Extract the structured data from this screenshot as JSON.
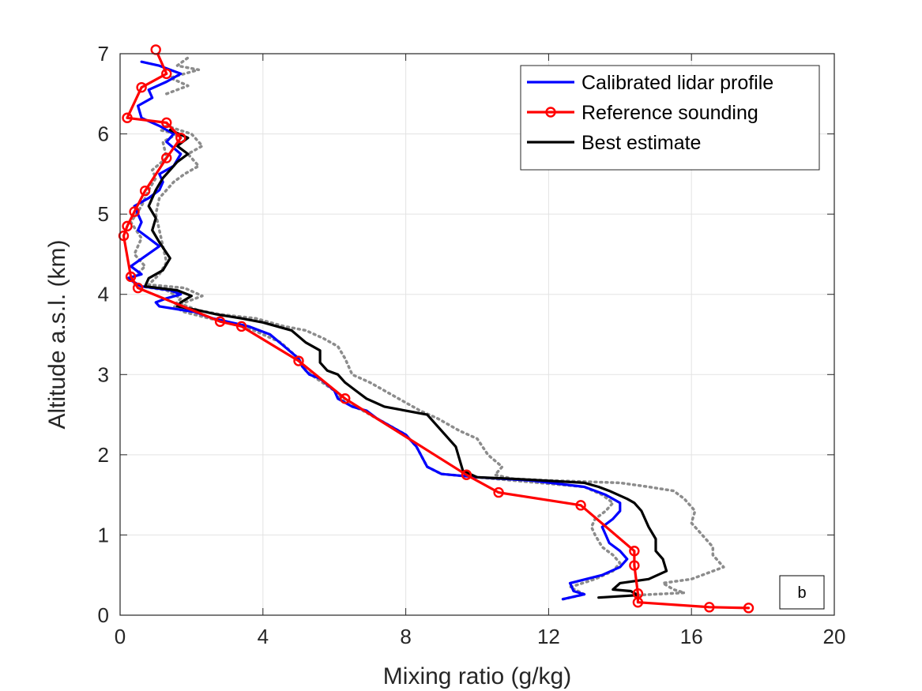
{
  "chart_data": {
    "type": "line",
    "xlabel": "Mixing ratio (g/kg)",
    "ylabel": "Altitude a.s.l. (km)",
    "xlim": [
      0,
      20
    ],
    "ylim": [
      0,
      7
    ],
    "xticks": [
      0,
      4,
      8,
      12,
      16,
      20
    ],
    "yticks": [
      0,
      1,
      2,
      3,
      4,
      5,
      6,
      7
    ],
    "grid": true,
    "legend_position": "top-right",
    "annotation": "b",
    "series": [
      {
        "name": "Calibrated lidar profile",
        "color": "#0000ff",
        "style": "solid",
        "points": [
          [
            12.4,
            0.2
          ],
          [
            13.0,
            0.26
          ],
          [
            12.7,
            0.3
          ],
          [
            12.6,
            0.4
          ],
          [
            13.5,
            0.5
          ],
          [
            14.0,
            0.6
          ],
          [
            14.2,
            0.7
          ],
          [
            14.0,
            0.8
          ],
          [
            13.7,
            0.9
          ],
          [
            13.6,
            1.0
          ],
          [
            13.5,
            1.1
          ],
          [
            13.8,
            1.2
          ],
          [
            14.0,
            1.3
          ],
          [
            14.0,
            1.4
          ],
          [
            13.6,
            1.5
          ],
          [
            13.0,
            1.6
          ],
          [
            11.5,
            1.68
          ],
          [
            10.0,
            1.72
          ],
          [
            9.0,
            1.76
          ],
          [
            8.6,
            1.85
          ],
          [
            8.3,
            2.1
          ],
          [
            8.0,
            2.25
          ],
          [
            7.2,
            2.45
          ],
          [
            6.9,
            2.55
          ],
          [
            6.5,
            2.6
          ],
          [
            6.1,
            2.7
          ],
          [
            6.0,
            2.8
          ],
          [
            5.6,
            2.95
          ],
          [
            5.3,
            3.0
          ],
          [
            5.1,
            3.1
          ],
          [
            5.0,
            3.2
          ],
          [
            4.6,
            3.35
          ],
          [
            4.2,
            3.5
          ],
          [
            3.6,
            3.6
          ],
          [
            2.6,
            3.7
          ],
          [
            2.1,
            3.78
          ],
          [
            1.8,
            3.8
          ],
          [
            1.1,
            3.85
          ],
          [
            1.0,
            3.9
          ],
          [
            1.3,
            3.95
          ],
          [
            1.7,
            4.0
          ],
          [
            1.4,
            4.05
          ],
          [
            0.6,
            4.1
          ],
          [
            0.4,
            4.15
          ],
          [
            0.2,
            4.2
          ],
          [
            0.6,
            4.25
          ],
          [
            0.3,
            4.35
          ],
          [
            1.1,
            4.6
          ],
          [
            0.8,
            4.7
          ],
          [
            0.5,
            4.8
          ],
          [
            0.6,
            4.9
          ],
          [
            0.5,
            5.0
          ],
          [
            0.4,
            5.1
          ],
          [
            0.8,
            5.2
          ],
          [
            1.1,
            5.3
          ],
          [
            1.2,
            5.4
          ],
          [
            1.1,
            5.5
          ],
          [
            1.5,
            5.6
          ],
          [
            1.7,
            5.75
          ],
          [
            1.3,
            5.9
          ],
          [
            1.5,
            6.0
          ],
          [
            1.1,
            6.1
          ],
          [
            0.6,
            6.2
          ],
          [
            0.5,
            6.35
          ],
          [
            0.9,
            6.45
          ],
          [
            0.8,
            6.55
          ],
          [
            1.3,
            6.65
          ],
          [
            1.7,
            6.75
          ],
          [
            1.1,
            6.85
          ],
          [
            0.6,
            6.9
          ]
        ]
      },
      {
        "name": "Reference sounding",
        "color": "#ff0000",
        "style": "solid-markers",
        "points": [
          [
            17.6,
            0.09
          ],
          [
            16.5,
            0.1
          ],
          [
            14.5,
            0.16
          ],
          [
            14.5,
            0.27
          ],
          [
            14.4,
            0.62
          ],
          [
            14.4,
            0.8
          ],
          [
            12.9,
            1.37
          ],
          [
            10.6,
            1.53
          ],
          [
            9.7,
            1.75
          ],
          [
            6.3,
            2.7
          ],
          [
            5.0,
            3.17
          ],
          [
            3.4,
            3.6
          ],
          [
            2.8,
            3.66
          ],
          [
            0.5,
            4.08
          ],
          [
            0.3,
            4.22
          ],
          [
            0.1,
            4.73
          ],
          [
            0.2,
            4.85
          ],
          [
            0.4,
            5.03
          ],
          [
            0.7,
            5.29
          ],
          [
            1.3,
            5.7
          ],
          [
            1.7,
            5.95
          ],
          [
            1.3,
            6.14
          ],
          [
            0.2,
            6.2
          ],
          [
            0.6,
            6.58
          ],
          [
            1.3,
            6.75
          ],
          [
            1.0,
            7.05
          ]
        ]
      },
      {
        "name": "Best estimate",
        "color": "#000000",
        "style": "solid",
        "points": [
          [
            13.4,
            0.22
          ],
          [
            14.5,
            0.25
          ],
          [
            14.3,
            0.3
          ],
          [
            13.8,
            0.32
          ],
          [
            14.0,
            0.4
          ],
          [
            14.8,
            0.45
          ],
          [
            15.3,
            0.55
          ],
          [
            15.2,
            0.7
          ],
          [
            15.0,
            0.8
          ],
          [
            15.0,
            0.95
          ],
          [
            14.8,
            1.1
          ],
          [
            14.6,
            1.3
          ],
          [
            14.4,
            1.4
          ],
          [
            14.2,
            1.45
          ],
          [
            13.7,
            1.55
          ],
          [
            13.4,
            1.6
          ],
          [
            13.0,
            1.65
          ],
          [
            11.0,
            1.7
          ],
          [
            10.0,
            1.72
          ],
          [
            9.6,
            1.8
          ],
          [
            9.4,
            2.1
          ],
          [
            8.9,
            2.35
          ],
          [
            8.6,
            2.5
          ],
          [
            7.4,
            2.6
          ],
          [
            6.9,
            2.7
          ],
          [
            6.6,
            2.8
          ],
          [
            6.3,
            2.9
          ],
          [
            6.1,
            3.0
          ],
          [
            5.8,
            3.05
          ],
          [
            5.6,
            3.15
          ],
          [
            5.6,
            3.3
          ],
          [
            5.2,
            3.4
          ],
          [
            4.8,
            3.55
          ],
          [
            4.0,
            3.65
          ],
          [
            3.4,
            3.7
          ],
          [
            2.7,
            3.75
          ],
          [
            2.2,
            3.8
          ],
          [
            1.6,
            3.85
          ],
          [
            1.7,
            3.9
          ],
          [
            2.0,
            3.98
          ],
          [
            1.6,
            4.05
          ],
          [
            0.7,
            4.1
          ],
          [
            0.8,
            4.2
          ],
          [
            1.2,
            4.3
          ],
          [
            1.4,
            4.45
          ],
          [
            1.1,
            4.65
          ],
          [
            0.9,
            4.8
          ],
          [
            1.0,
            4.95
          ],
          [
            0.8,
            5.1
          ],
          [
            1.0,
            5.3
          ],
          [
            1.2,
            5.45
          ],
          [
            1.4,
            5.55
          ],
          [
            1.6,
            5.65
          ],
          [
            1.9,
            5.75
          ],
          [
            1.6,
            5.85
          ],
          [
            1.9,
            5.95
          ],
          [
            1.4,
            6.05
          ]
        ]
      },
      {
        "name": "",
        "color": "#8c8c8c",
        "style": "dotted",
        "points": [
          [
            12.4,
            0.2
          ],
          [
            13.0,
            0.26
          ],
          [
            12.6,
            0.35
          ],
          [
            13.3,
            0.45
          ],
          [
            13.8,
            0.55
          ],
          [
            14.0,
            0.65
          ],
          [
            13.8,
            0.75
          ],
          [
            13.5,
            0.85
          ],
          [
            13.3,
            1.0
          ],
          [
            13.2,
            1.1
          ],
          [
            13.3,
            1.2
          ],
          [
            13.6,
            1.3
          ],
          [
            13.8,
            1.4
          ],
          [
            13.5,
            1.5
          ],
          [
            13.0,
            1.6
          ],
          [
            11.0,
            1.68
          ],
          [
            9.0,
            1.76
          ],
          [
            8.6,
            1.85
          ],
          [
            8.3,
            2.1
          ],
          [
            8.0,
            2.25
          ],
          [
            7.0,
            2.5
          ],
          [
            6.8,
            2.55
          ],
          [
            6.3,
            2.65
          ],
          [
            6.0,
            2.8
          ],
          [
            5.5,
            2.95
          ],
          [
            5.2,
            3.05
          ],
          [
            5.0,
            3.2
          ],
          [
            4.5,
            3.4
          ],
          [
            4.0,
            3.5
          ],
          [
            3.5,
            3.6
          ],
          [
            2.5,
            3.7
          ],
          [
            1.8,
            3.78
          ],
          [
            1.5,
            3.85
          ],
          [
            1.7,
            3.95
          ],
          [
            1.3,
            4.05
          ],
          [
            0.6,
            4.1
          ],
          [
            0.3,
            4.15
          ]
        ]
      },
      {
        "name": "",
        "color": "#8c8c8c",
        "style": "dotted",
        "points": [
          [
            14.5,
            0.25
          ],
          [
            15.8,
            0.28
          ],
          [
            15.5,
            0.32
          ],
          [
            15.2,
            0.4
          ],
          [
            16.0,
            0.45
          ],
          [
            16.9,
            0.6
          ],
          [
            16.6,
            0.75
          ],
          [
            16.6,
            0.85
          ],
          [
            16.3,
            1.0
          ],
          [
            16.0,
            1.15
          ],
          [
            16.1,
            1.3
          ],
          [
            15.8,
            1.45
          ],
          [
            15.5,
            1.55
          ],
          [
            14.8,
            1.6
          ],
          [
            14.0,
            1.65
          ],
          [
            12.0,
            1.68
          ],
          [
            11.0,
            1.7
          ],
          [
            10.5,
            1.75
          ],
          [
            10.7,
            1.85
          ],
          [
            10.3,
            2.0
          ],
          [
            10.0,
            2.2
          ],
          [
            9.5,
            2.3
          ],
          [
            8.9,
            2.45
          ],
          [
            8.4,
            2.55
          ],
          [
            7.8,
            2.7
          ],
          [
            7.4,
            2.8
          ],
          [
            7.0,
            2.9
          ],
          [
            6.5,
            3.0
          ],
          [
            6.3,
            3.2
          ],
          [
            6.1,
            3.35
          ],
          [
            5.7,
            3.45
          ],
          [
            5.2,
            3.55
          ],
          [
            4.6,
            3.6
          ],
          [
            3.8,
            3.7
          ],
          [
            2.8,
            3.75
          ],
          [
            2.2,
            3.8
          ],
          [
            1.7,
            3.88
          ],
          [
            2.3,
            3.98
          ],
          [
            1.8,
            4.08
          ],
          [
            0.8,
            4.12
          ],
          [
            1.1,
            4.25
          ],
          [
            1.3,
            4.4
          ],
          [
            1.2,
            4.6
          ],
          [
            1.1,
            4.8
          ],
          [
            1.0,
            5.0
          ],
          [
            1.1,
            5.2
          ],
          [
            1.5,
            5.4
          ],
          [
            1.8,
            5.5
          ],
          [
            2.2,
            5.6
          ],
          [
            1.9,
            5.75
          ],
          [
            2.3,
            5.85
          ],
          [
            2.0,
            6.0
          ],
          [
            1.3,
            6.1
          ]
        ]
      },
      {
        "name": "",
        "color": "#8c8c8c",
        "style": "dotted",
        "points": [
          [
            0.4,
            4.22
          ],
          [
            0.7,
            4.35
          ],
          [
            0.4,
            4.5
          ],
          [
            0.6,
            4.7
          ],
          [
            0.3,
            4.9
          ],
          [
            0.6,
            5.1
          ],
          [
            0.8,
            5.3
          ],
          [
            1.0,
            5.45
          ],
          [
            0.9,
            5.55
          ],
          [
            1.3,
            5.7
          ],
          [
            1.2,
            5.9
          ],
          [
            1.6,
            6.0
          ],
          [
            1.1,
            6.05
          ]
        ]
      },
      {
        "name": "",
        "color": "#8c8c8c",
        "style": "dotted",
        "points": [
          [
            1.3,
            6.5
          ],
          [
            1.9,
            6.6
          ],
          [
            1.4,
            6.7
          ],
          [
            2.2,
            6.8
          ],
          [
            1.6,
            6.85
          ],
          [
            1.9,
            6.95
          ]
        ]
      }
    ]
  }
}
